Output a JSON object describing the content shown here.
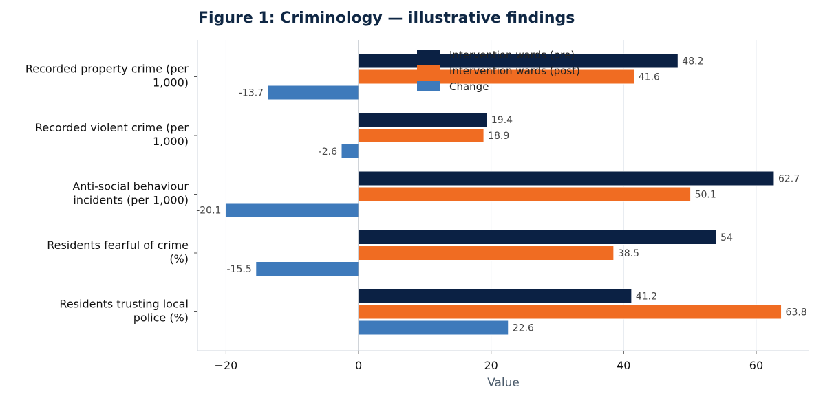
{
  "chart_data": {
    "type": "bar",
    "orientation": "horizontal",
    "title": "Figure 1: Criminology — illustrative findings",
    "xlabel": "Value",
    "ylabel": "",
    "xlim": [
      -24.3,
      68.0
    ],
    "xticks": [
      -20,
      0,
      20,
      40,
      60
    ],
    "xtick_labels": [
      "−20",
      "0",
      "20",
      "40",
      "60"
    ],
    "grid": "vertical",
    "legend_position": "top",
    "categories": [
      [
        "Recorded property crime (per",
        "1,000)"
      ],
      [
        "Recorded violent crime (per",
        "1,000)"
      ],
      [
        "Anti-social behaviour",
        "incidents (per 1,000)"
      ],
      [
        "Residents fearful of crime",
        "(%)"
      ],
      [
        "Residents trusting local",
        "police (%)"
      ]
    ],
    "series": [
      {
        "name": "Intervention wards (pre)",
        "color": "#0b2144",
        "values": [
          48.2,
          19.4,
          62.7,
          54,
          41.2
        ],
        "labels": [
          "48.2",
          "19.4",
          "62.7",
          "54",
          "41.2"
        ]
      },
      {
        "name": "Intervention wards (post)",
        "color": "#f06c22",
        "values": [
          41.6,
          18.9,
          50.1,
          38.5,
          63.8
        ],
        "labels": [
          "41.6",
          "18.9",
          "50.1",
          "38.5",
          "63.8"
        ]
      },
      {
        "name": "Change",
        "color": "#3e7abb",
        "values": [
          -13.7,
          -2.6,
          -20.1,
          -15.5,
          22.6
        ],
        "labels": [
          "-13.7",
          "-2.6",
          "-20.1",
          "-15.5",
          "22.6"
        ]
      }
    ]
  }
}
